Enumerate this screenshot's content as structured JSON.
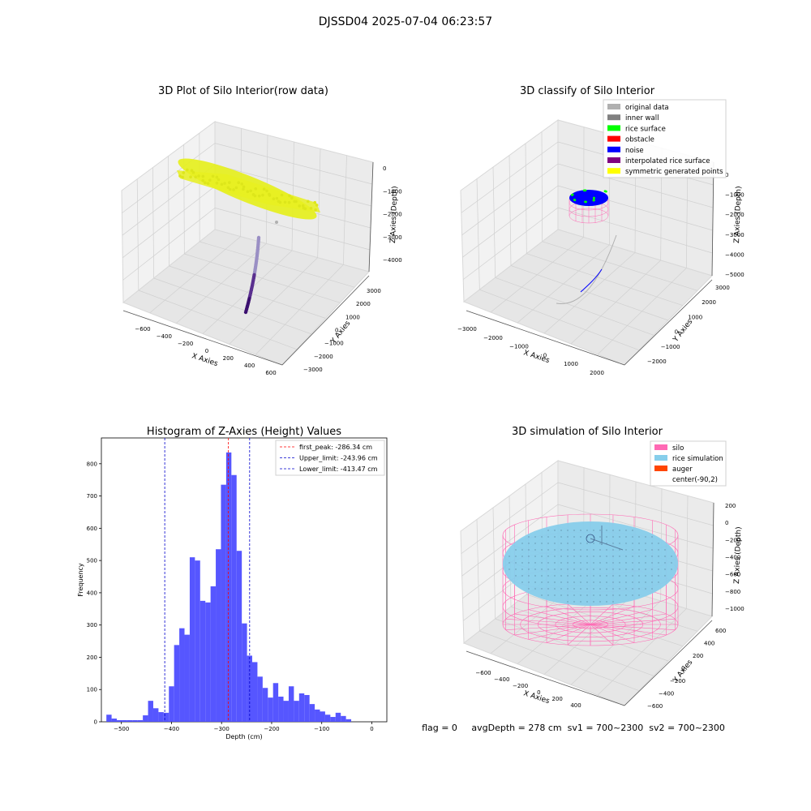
{
  "suptitle": "DJSSD04 2025-07-04 06:23:57",
  "status_line": "flag = 0     avgDepth = 278 cm  sv1 = 700~2300  sv2 = 700~2300",
  "colors": {
    "yellow": "#e6ef1a",
    "viridis_dark": "#3b0f6f",
    "hist_bar": "#4d4dff",
    "peak_line": "#ff0000",
    "limit_line": "#0000cc",
    "silo_pink": "#ff69b4",
    "rice_blue": "#87ceeb",
    "auger": "#ff4500",
    "noise": "#0000ff",
    "rice_surface": "#00ff00",
    "obstacle": "#ff0000",
    "inner_wall": "#808080",
    "original": "#b0b0b0",
    "interp": "#800080",
    "symmetric": "#ffff00"
  },
  "chart_data": [
    {
      "type": "scatter",
      "title": "3D Plot of Silo Interior(row data)",
      "xlabel": "X Axies",
      "ylabel": "Y Axies",
      "zlabel": "Z Axies (Depth)",
      "xticks": [
        "−600",
        "−400",
        "−200",
        "0",
        "200",
        "400",
        "600"
      ],
      "yticks": [
        "−3000",
        "−2000",
        "−1000",
        "0",
        "1000",
        "2000",
        "3000"
      ],
      "zticks": [
        "0",
        "−1000",
        "−2000",
        "−3000",
        "−4000"
      ]
    },
    {
      "type": "scatter",
      "title": "3D classify of Silo Interior",
      "xlabel": "X Axies",
      "ylabel": "Y Axies",
      "zlabel": "Z Axies (Depth)",
      "xticks": [
        "−3000",
        "−2000",
        "−1000",
        "0",
        "1000",
        "2000"
      ],
      "yticks": [
        "−2000",
        "−1000",
        "0",
        "1000",
        "2000",
        "3000"
      ],
      "zticks": [
        "0",
        "−1000",
        "−2000",
        "−3000",
        "−4000",
        "−5000"
      ],
      "legend": [
        "original data",
        "inner wall",
        "rice surface",
        "obstacle",
        "noise",
        "interpolated rice surface",
        "symmetric generated points"
      ],
      "legend_colors": [
        "#b0b0b0",
        "#808080",
        "#00ff00",
        "#ff0000",
        "#0000ff",
        "#800080",
        "#ffff00"
      ],
      "legend_position": "top-right"
    },
    {
      "type": "bar",
      "title": "Histogram of Z-Axies (Height) Values",
      "xlabel": "Depth (cm)",
      "ylabel": "Frequency",
      "xlim": [
        -540,
        30
      ],
      "ylim": [
        0,
        880
      ],
      "xticks": [
        -500,
        -400,
        -300,
        -200,
        -100,
        0
      ],
      "xtick_labels": [
        "−500",
        "−400",
        "−300",
        "−200",
        "−100",
        "0"
      ],
      "yticks": [
        0,
        100,
        200,
        300,
        400,
        500,
        600,
        700,
        800
      ],
      "bin_start": -530,
      "bin_width": 10.4,
      "values": [
        22,
        10,
        5,
        5,
        5,
        5,
        5,
        20,
        65,
        42,
        30,
        28,
        110,
        238,
        290,
        270,
        510,
        500,
        375,
        370,
        420,
        535,
        735,
        835,
        765,
        530,
        305,
        205,
        185,
        140,
        105,
        75,
        120,
        78,
        65,
        110,
        65,
        88,
        83,
        55,
        38,
        32,
        22,
        15,
        28,
        18,
        8
      ],
      "lines": [
        {
          "label": "first_peak: -286.34 cm",
          "x": -286.34,
          "color": "#ff0000"
        },
        {
          "label": "Upper_limit: -243.96 cm",
          "x": -243.96,
          "color": "#0000cc"
        },
        {
          "label": "Lower_limit: -413.47 cm",
          "x": -413.47,
          "color": "#0000cc"
        }
      ],
      "legend_position": "top-right"
    },
    {
      "type": "scatter",
      "title": "3D simulation of Silo Interior",
      "xlabel": "X Axies",
      "ylabel": "Y Axies",
      "zlabel": "Z Axies (Depth)",
      "xticks": [
        "−600",
        "−400",
        "−200",
        "0",
        "200",
        "400"
      ],
      "yticks": [
        "−600",
        "−400",
        "−200",
        "0",
        "200",
        "400",
        "600"
      ],
      "zticks": [
        "200",
        "0",
        "−200",
        "−400",
        "−600",
        "−800",
        "−1000"
      ],
      "legend": [
        "silo",
        "rice simulation",
        "auger",
        "center(-90,2)"
      ],
      "legend_colors": [
        "#ff69b4",
        "#87ceeb",
        "#ff4500",
        "#ffffff"
      ],
      "legend_position": "top-right"
    }
  ]
}
